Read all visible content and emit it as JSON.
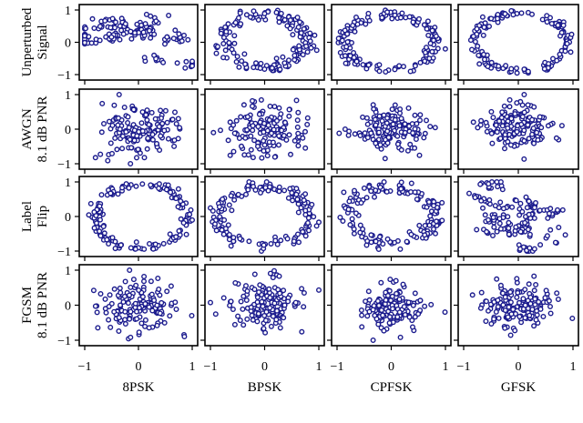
{
  "figure": {
    "rows": [
      {
        "label_lines": [
          "Unperturbed",
          "Signal"
        ]
      },
      {
        "label_lines": [
          "AWGN",
          "8.1 dB PNR"
        ]
      },
      {
        "label_lines": [
          "Label",
          "Flip"
        ]
      },
      {
        "label_lines": [
          "FGSM",
          "8.1 dB PNR"
        ]
      }
    ],
    "columns": [
      {
        "label": "8PSK"
      },
      {
        "label": "BPSK"
      },
      {
        "label": "CPFSK"
      },
      {
        "label": "GFSK"
      }
    ],
    "x_tick_labels": [
      "−1",
      "0",
      "1"
    ],
    "y_tick_labels": [
      "1",
      "0",
      "−1"
    ],
    "marker_color": "#1c1c8e",
    "axis_color": "#000000"
  },
  "chart_data": {
    "type": "scatter",
    "title": "",
    "layout": "4x4 grid of scatter panels (rows = perturbation, columns = modulation)",
    "xlim": [
      -1,
      1
    ],
    "ylim": [
      -1,
      1
    ],
    "x_ticks": [
      -1,
      0,
      1
    ],
    "y_ticks": [
      -1,
      0,
      1
    ],
    "grid": false,
    "legend": null,
    "row_labels": [
      "Unperturbed Signal",
      "AWGN 8.1 dB PNR",
      "Label Flip",
      "FGSM 8.1 dB PNR"
    ],
    "column_labels": [
      "8PSK",
      "BPSK",
      "CPFSK",
      "GFSK"
    ],
    "marker": "open circle",
    "points_per_panel": 150,
    "panels": [
      {
        "row": 0,
        "col": 0,
        "pattern": "clustered-blob",
        "seed": 11,
        "cx": 0.0,
        "cy": 0.0,
        "sx": 0.5,
        "sy": 0.45,
        "note": "spread clusters, x in [-1,0.8], y in [-1,1]"
      },
      {
        "row": 0,
        "col": 1,
        "pattern": "ellipse",
        "seed": 12,
        "cx": 0.0,
        "cy": 0.05,
        "rx": 0.8,
        "ry": 0.8,
        "noise": 0.12
      },
      {
        "row": 0,
        "col": 2,
        "pattern": "ellipse",
        "seed": 13,
        "cx": -0.05,
        "cy": 0.0,
        "rx": 0.85,
        "ry": 0.85,
        "noise": 0.09
      },
      {
        "row": 0,
        "col": 3,
        "pattern": "ellipse",
        "seed": 14,
        "cx": 0.05,
        "cy": 0.0,
        "rx": 0.85,
        "ry": 0.9,
        "noise": 0.07
      },
      {
        "row": 1,
        "col": 0,
        "pattern": "gaussian",
        "seed": 21,
        "cx": 0.0,
        "cy": 0.0,
        "sx": 0.38,
        "sy": 0.4
      },
      {
        "row": 1,
        "col": 1,
        "pattern": "gaussian",
        "seed": 22,
        "cx": 0.0,
        "cy": 0.0,
        "sx": 0.35,
        "sy": 0.35
      },
      {
        "row": 1,
        "col": 2,
        "pattern": "gaussian",
        "seed": 23,
        "cx": 0.0,
        "cy": 0.0,
        "sx": 0.35,
        "sy": 0.3
      },
      {
        "row": 1,
        "col": 3,
        "pattern": "gaussian",
        "seed": 24,
        "cx": 0.0,
        "cy": 0.05,
        "sx": 0.33,
        "sy": 0.38
      },
      {
        "row": 2,
        "col": 0,
        "pattern": "ellipse",
        "seed": 31,
        "cx": 0.05,
        "cy": 0.0,
        "rx": 0.85,
        "ry": 0.92,
        "noise": 0.07
      },
      {
        "row": 2,
        "col": 1,
        "pattern": "ellipse",
        "seed": 32,
        "cx": 0.0,
        "cy": 0.0,
        "rx": 0.85,
        "ry": 0.85,
        "noise": 0.09
      },
      {
        "row": 2,
        "col": 2,
        "pattern": "ellipse",
        "seed": 33,
        "cx": 0.0,
        "cy": 0.05,
        "rx": 0.8,
        "ry": 0.8,
        "noise": 0.12
      },
      {
        "row": 2,
        "col": 3,
        "pattern": "clustered-blob",
        "seed": 34,
        "cx": 0.0,
        "cy": 0.0,
        "sx": 0.5,
        "sy": 0.45
      },
      {
        "row": 3,
        "col": 0,
        "pattern": "gaussian",
        "seed": 41,
        "cx": 0.0,
        "cy": 0.0,
        "sx": 0.38,
        "sy": 0.35
      },
      {
        "row": 3,
        "col": 1,
        "pattern": "gaussian",
        "seed": 42,
        "cx": 0.0,
        "cy": 0.0,
        "sx": 0.33,
        "sy": 0.35
      },
      {
        "row": 3,
        "col": 2,
        "pattern": "gaussian",
        "seed": 43,
        "cx": 0.0,
        "cy": -0.1,
        "sx": 0.3,
        "sy": 0.3
      },
      {
        "row": 3,
        "col": 3,
        "pattern": "gaussian",
        "seed": 44,
        "cx": 0.0,
        "cy": 0.0,
        "sx": 0.35,
        "sy": 0.33
      }
    ]
  }
}
